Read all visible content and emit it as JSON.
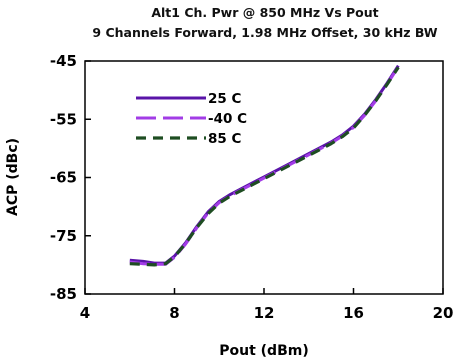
{
  "chart_data": {
    "type": "line",
    "title": "Alt1 Ch. Pwr @ 850 MHz Vs Pout",
    "subtitle": "9 Channels Forward, 1.98 MHz Offset, 30 kHz BW",
    "xlabel": "Pout (dBm)",
    "ylabel": "ACP (dBc)",
    "xlim": [
      4,
      20
    ],
    "ylim": [
      -85,
      -45
    ],
    "xticks": [
      4,
      8,
      12,
      16,
      20
    ],
    "yticks": [
      -45,
      -55,
      -65,
      -75,
      -85
    ],
    "grid": false,
    "legend_position": "top-left",
    "series": [
      {
        "name": "25 C",
        "color": "#5a14a8",
        "dash": "solid",
        "x": [
          6.0,
          6.6,
          7.1,
          7.6,
          8.0,
          8.5,
          9.0,
          9.5,
          10.0,
          10.5,
          11.0,
          11.5,
          12.0,
          13.0,
          14.0,
          15.0,
          15.5,
          16.0,
          16.5,
          17.0,
          17.5,
          18.0
        ],
        "y": [
          -79.2,
          -79.4,
          -79.7,
          -79.7,
          -78.5,
          -76.2,
          -73.4,
          -70.9,
          -69.1,
          -67.9,
          -66.9,
          -65.9,
          -64.9,
          -62.9,
          -60.9,
          -58.9,
          -57.7,
          -56.2,
          -54.1,
          -51.6,
          -48.8,
          -45.8
        ]
      },
      {
        "name": "-40 C",
        "color": "#a23ce6",
        "dash": "long-dash",
        "x": [
          6.0,
          6.6,
          7.1,
          7.6,
          8.0,
          8.5,
          9.0,
          9.5,
          10.0,
          10.5,
          11.0,
          11.5,
          12.0,
          13.0,
          14.0,
          15.0,
          15.5,
          16.0,
          16.5,
          17.0,
          17.5,
          18.0
        ],
        "y": [
          -79.5,
          -79.8,
          -79.9,
          -79.9,
          -78.7,
          -76.4,
          -73.6,
          -71.1,
          -69.3,
          -68.1,
          -67.1,
          -66.1,
          -65.1,
          -63.1,
          -61.1,
          -59.1,
          -57.9,
          -56.4,
          -54.3,
          -51.8,
          -49.0,
          -46.0
        ]
      },
      {
        "name": "85 C",
        "color": "#1e4d22",
        "dash": "dash",
        "x": [
          6.0,
          6.6,
          7.1,
          7.6,
          8.0,
          8.5,
          9.0,
          9.5,
          10.0,
          10.5,
          11.0,
          11.5,
          12.0,
          13.0,
          14.0,
          15.0,
          15.5,
          16.0,
          16.5,
          17.0,
          17.5,
          18.0
        ],
        "y": [
          -79.8,
          -79.9,
          -80.0,
          -79.8,
          -78.6,
          -76.3,
          -73.6,
          -71.2,
          -69.4,
          -68.2,
          -67.2,
          -66.2,
          -65.2,
          -63.2,
          -61.2,
          -59.2,
          -58.0,
          -56.5,
          -54.3,
          -51.8,
          -49.0,
          -46.1
        ]
      }
    ]
  }
}
